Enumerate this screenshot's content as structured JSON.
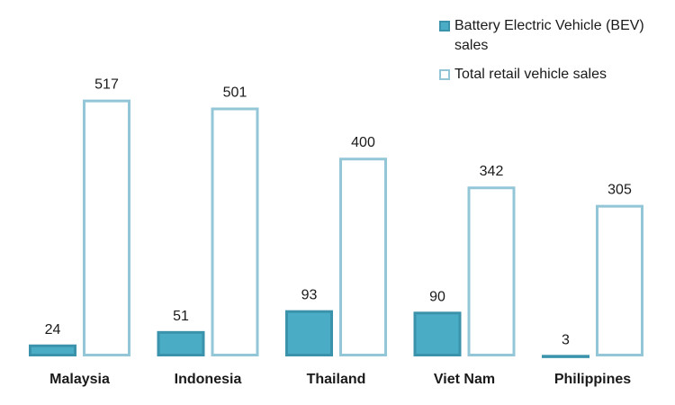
{
  "chart_data": {
    "type": "bar",
    "categories": [
      "Malaysia",
      "Indonesia",
      "Thailand",
      "Viet Nam",
      "Philippines"
    ],
    "series": [
      {
        "name": "Battery Electric Vehicle (BEV) sales",
        "values": [
          24,
          51,
          93,
          90,
          3
        ],
        "color": "#4bacc6",
        "stroke": "#3a93ab",
        "fill_style": "solid"
      },
      {
        "name": "Total retail vehicle sales",
        "values": [
          517,
          501,
          400,
          342,
          305
        ],
        "color": "#ffffff",
        "stroke": "#93c6d7",
        "fill_style": "outline"
      }
    ],
    "ylim": [
      0,
      520
    ],
    "grid": false,
    "legend_position": "top-right"
  }
}
